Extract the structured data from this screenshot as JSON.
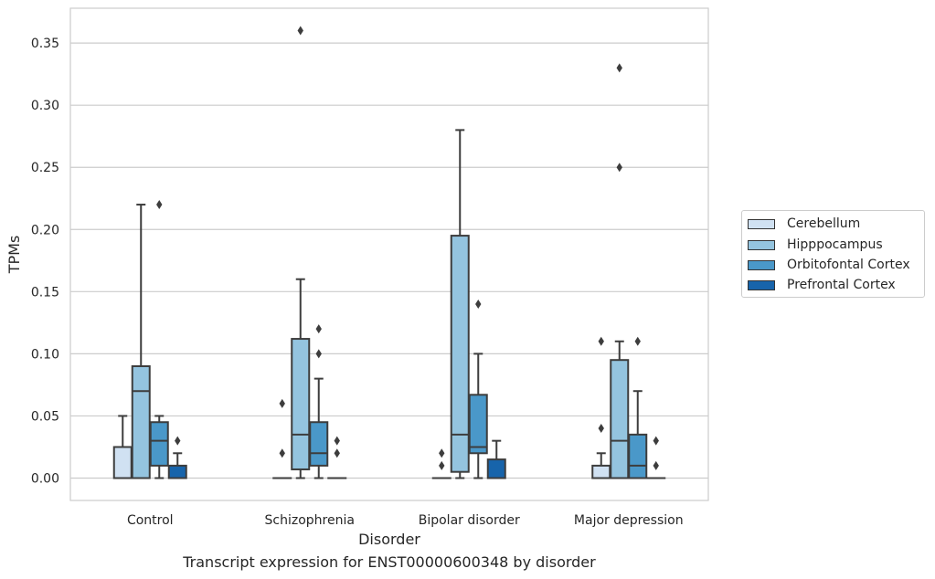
{
  "caption": "Transcript expression for ENST00000600348 by disorder",
  "chart_data": {
    "type": "box",
    "xlabel": "Disorder",
    "ylabel": "TPMs",
    "ylim": [
      -0.018,
      0.378
    ],
    "yticks": [
      "0.00",
      "0.05",
      "0.10",
      "0.15",
      "0.20",
      "0.25",
      "0.30",
      "0.35"
    ],
    "ytick_values": [
      0,
      0.05,
      0.1,
      0.15,
      0.2,
      0.25,
      0.3,
      0.35
    ],
    "grid": true,
    "legend_position": "right",
    "categories": [
      "Control",
      "Schizophrenia",
      "Bipolar disorder",
      "Major depression"
    ],
    "series": [
      {
        "name": "Cerebellum",
        "color": "#d0e1f2",
        "boxes": [
          {
            "whislo": 0,
            "q1": 0,
            "med": 0,
            "q3": 0.025,
            "whishi": 0.05,
            "fliers": []
          },
          {
            "whislo": 0,
            "q1": 0,
            "med": 0,
            "q3": 0,
            "whishi": 0,
            "fliers": [
              0.02,
              0.06
            ]
          },
          {
            "whislo": 0,
            "q1": 0,
            "med": 0,
            "q3": 0,
            "whishi": 0,
            "fliers": [
              0.01,
              0.02
            ]
          },
          {
            "whislo": 0,
            "q1": 0,
            "med": 0,
            "q3": 0.01,
            "whishi": 0.02,
            "fliers": [
              0.04,
              0.11
            ]
          }
        ]
      },
      {
        "name": "Hipppocampus",
        "color": "#94c4df",
        "boxes": [
          {
            "whislo": 0,
            "q1": 0,
            "med": 0.07,
            "q3": 0.09,
            "whishi": 0.22,
            "fliers": []
          },
          {
            "whislo": 0,
            "q1": 0.007,
            "med": 0.035,
            "q3": 0.112,
            "whishi": 0.16,
            "fliers": [
              0.36
            ]
          },
          {
            "whislo": 0,
            "q1": 0.005,
            "med": 0.035,
            "q3": 0.195,
            "whishi": 0.28,
            "fliers": []
          },
          {
            "whislo": 0,
            "q1": 0,
            "med": 0.03,
            "q3": 0.095,
            "whishi": 0.11,
            "fliers": [
              0.25,
              0.33
            ]
          }
        ]
      },
      {
        "name": "Orbitofontal Cortex",
        "color": "#4a98c9",
        "boxes": [
          {
            "whislo": 0,
            "q1": 0.01,
            "med": 0.03,
            "q3": 0.045,
            "whishi": 0.05,
            "fliers": [
              0.22
            ]
          },
          {
            "whislo": 0,
            "q1": 0.01,
            "med": 0.02,
            "q3": 0.045,
            "whishi": 0.08,
            "fliers": [
              0.1,
              0.12
            ]
          },
          {
            "whislo": 0,
            "q1": 0.02,
            "med": 0.025,
            "q3": 0.067,
            "whishi": 0.1,
            "fliers": [
              0.14
            ]
          },
          {
            "whislo": 0,
            "q1": 0,
            "med": 0.01,
            "q3": 0.035,
            "whishi": 0.07,
            "fliers": [
              0.11
            ]
          }
        ]
      },
      {
        "name": "Prefrontal Cortex",
        "color": "#1764ab",
        "boxes": [
          {
            "whislo": 0,
            "q1": 0,
            "med": 0,
            "q3": 0.01,
            "whishi": 0.02,
            "fliers": [
              0.03
            ]
          },
          {
            "whislo": 0,
            "q1": 0,
            "med": 0,
            "q3": 0,
            "whishi": 0,
            "fliers": [
              0.02,
              0.03
            ]
          },
          {
            "whislo": 0,
            "q1": 0,
            "med": 0,
            "q3": 0.015,
            "whishi": 0.03,
            "fliers": []
          },
          {
            "whislo": 0,
            "q1": 0,
            "med": 0,
            "q3": 0,
            "whishi": 0,
            "fliers": [
              0.01,
              0.03
            ]
          }
        ]
      }
    ]
  }
}
